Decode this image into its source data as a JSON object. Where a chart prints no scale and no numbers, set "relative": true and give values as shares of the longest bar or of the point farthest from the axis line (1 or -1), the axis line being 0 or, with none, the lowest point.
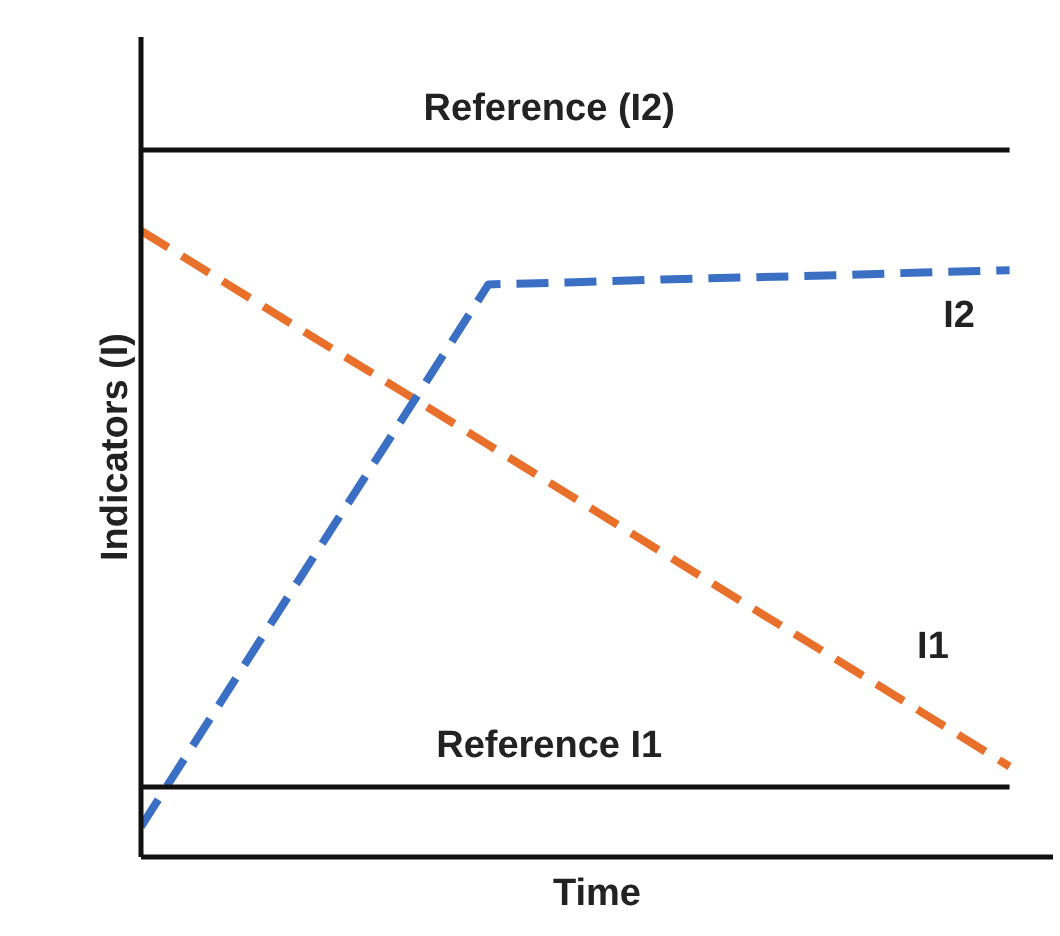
{
  "chart_data": {
    "type": "line",
    "relative": true,
    "xlabel": "Time",
    "ylabel": "Indicators (I)",
    "line_style": "dashed",
    "categories": [
      null,
      null,
      null,
      null,
      null,
      null,
      null,
      null,
      null,
      null,
      null
    ],
    "series": [
      {
        "name": "I1",
        "color": "#e8702a",
        "values": [
          0.886,
          0.81,
          0.734,
          0.659,
          0.583,
          0.507,
          0.431,
          0.355,
          0.28,
          0.204,
          0.128
        ]
      },
      {
        "name": "I2",
        "color": "#3a6fc4",
        "values": [
          0.043,
          0.235,
          0.427,
          0.618,
          0.81,
          0.813,
          0.817,
          0.82,
          0.823,
          0.827,
          0.83
        ]
      },
      {
        "name": "Reference (I2)",
        "color": "#111111",
        "line_style": "solid",
        "values": [
          1,
          1,
          1,
          1,
          1,
          1,
          1,
          1,
          1,
          1,
          1
        ]
      },
      {
        "name": "Reference I1",
        "color": "#111111",
        "line_style": "solid",
        "values": [
          0.099,
          0.099,
          0.099,
          0.099,
          0.099,
          0.099,
          0.099,
          0.099,
          0.099,
          0.099,
          0.099
        ]
      }
    ]
  }
}
